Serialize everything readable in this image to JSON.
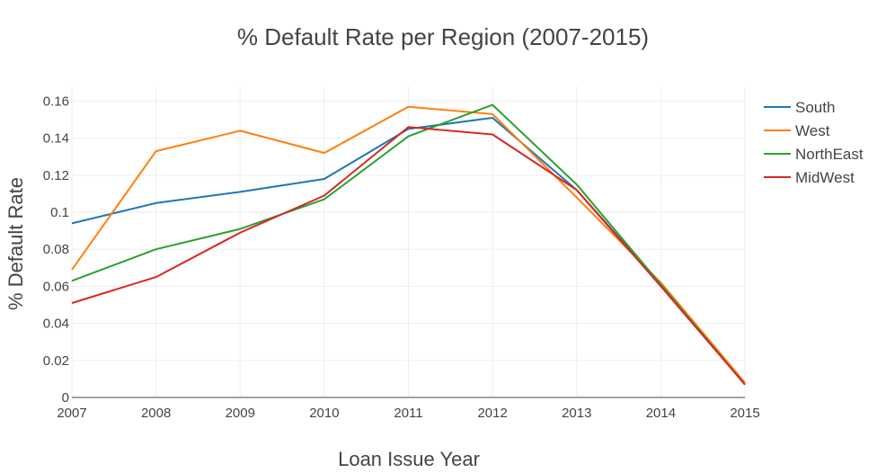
{
  "chart_data": {
    "type": "line",
    "title": "% Default Rate per Region (2007-2015)",
    "xlabel": "Loan Issue Year",
    "ylabel": "% Default Rate",
    "x": [
      2007,
      2008,
      2009,
      2010,
      2011,
      2012,
      2013,
      2014,
      2015
    ],
    "x_ticks": [
      "2007",
      "2008",
      "2009",
      "2010",
      "2011",
      "2012",
      "2013",
      "2014",
      "2015"
    ],
    "xlim": [
      2007,
      2015
    ],
    "ylim": [
      0,
      0.168
    ],
    "y_ticks": [
      "0",
      "0.02",
      "0.04",
      "0.06",
      "0.08",
      "0.1",
      "0.12",
      "0.14",
      "0.16"
    ],
    "y_tick_values": [
      0,
      0.02,
      0.04,
      0.06,
      0.08,
      0.1,
      0.12,
      0.14,
      0.16
    ],
    "grid": true,
    "legend_position": "top-right",
    "series": [
      {
        "name": "South",
        "color": "#1f77b4",
        "values": [
          0.094,
          0.105,
          0.111,
          0.118,
          0.145,
          0.151,
          0.112,
          0.061,
          0.007
        ]
      },
      {
        "name": "West",
        "color": "#ff7f0e",
        "values": [
          0.069,
          0.133,
          0.144,
          0.132,
          0.157,
          0.153,
          0.108,
          0.062,
          0.008
        ]
      },
      {
        "name": "NorthEast",
        "color": "#2ca02c",
        "values": [
          0.063,
          0.08,
          0.091,
          0.107,
          0.141,
          0.158,
          0.115,
          0.061,
          0.007
        ]
      },
      {
        "name": "MidWest",
        "color": "#d62728",
        "values": [
          0.051,
          0.065,
          0.089,
          0.109,
          0.146,
          0.142,
          0.112,
          0.06,
          0.007
        ]
      }
    ]
  }
}
